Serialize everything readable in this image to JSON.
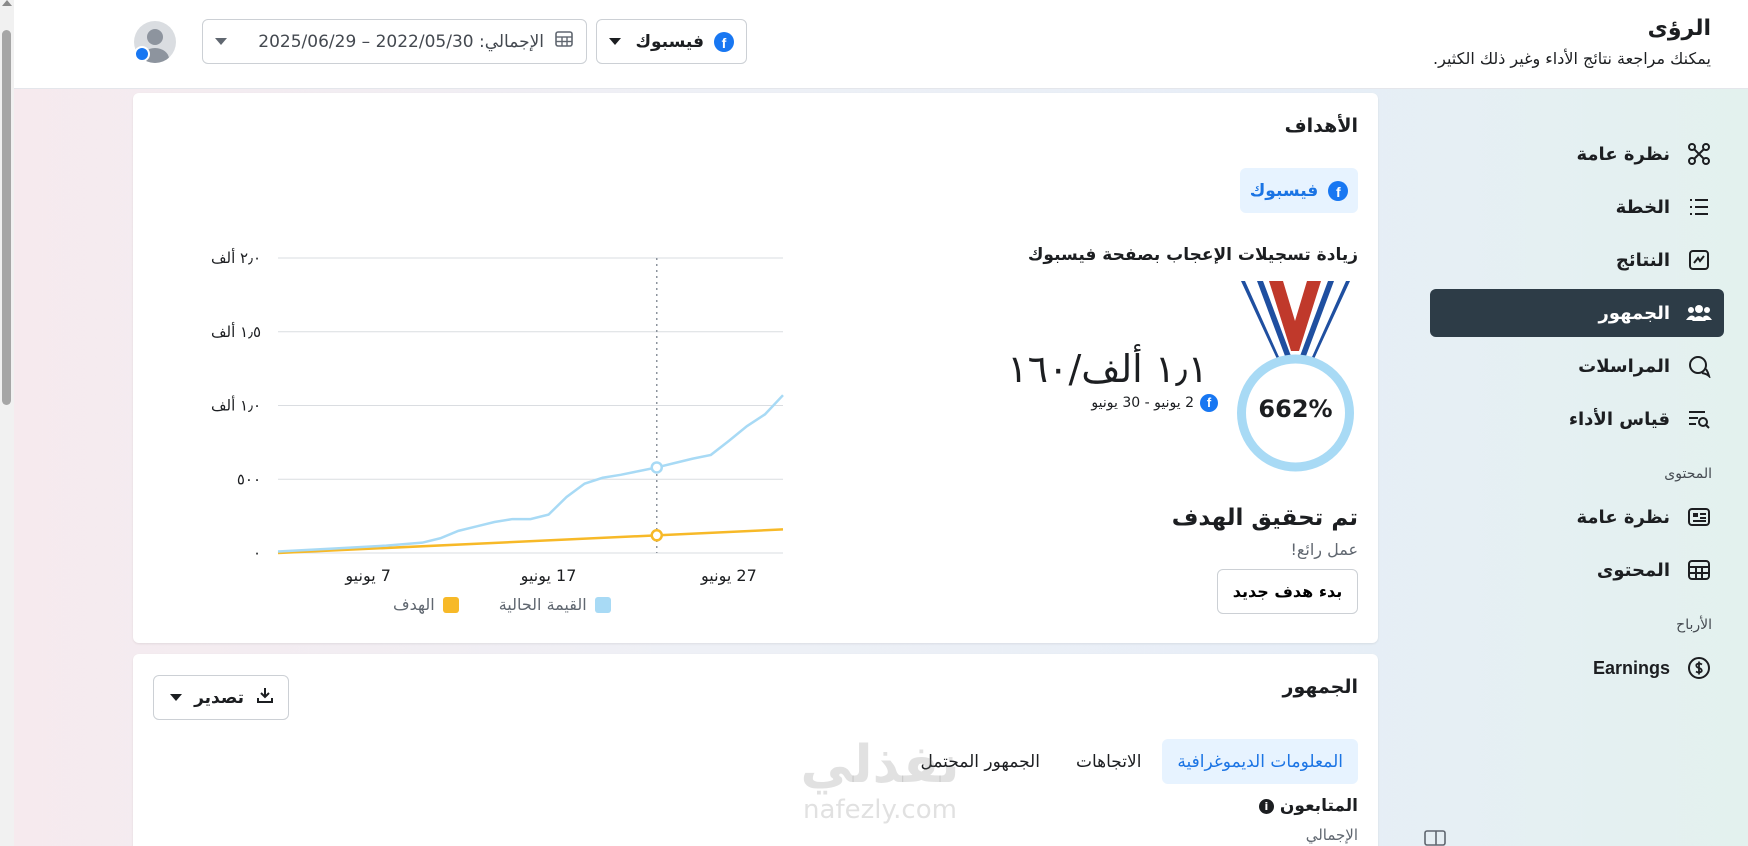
{
  "header": {
    "title": "الرؤى",
    "subtitle": "يمكنك مراجعة نتائج الأداء وغير ذلك الكثير.",
    "platform_label": "فيسبوك",
    "date_range_label": "الإجمالي: 2022/05/30 – 2025/06/29"
  },
  "sidebar": {
    "items": [
      {
        "label": "نظرة عامة",
        "icon": "overview-icon",
        "active": false
      },
      {
        "label": "الخطة",
        "icon": "plan-list-icon",
        "active": false
      },
      {
        "label": "النتائج",
        "icon": "results-chart-icon",
        "active": false
      },
      {
        "label": "الجمهور",
        "icon": "audience-people-icon",
        "active": true
      },
      {
        "label": "المراسلات",
        "icon": "messages-icon",
        "active": false
      },
      {
        "label": "قياس الأداء",
        "icon": "benchmark-icon",
        "active": false
      }
    ],
    "content_section": "المحتوى",
    "content_items": [
      {
        "label": "نظرة عامة",
        "icon": "content-overview-icon"
      },
      {
        "label": "المحتوى",
        "icon": "content-table-icon"
      }
    ],
    "earnings_section": "الأرباح",
    "earnings_items": [
      {
        "label": "Earnings",
        "icon": "dollar-icon"
      }
    ]
  },
  "goals": {
    "title": "الأهداف",
    "platform_chip": "فيسبوك",
    "goal_name": "زيادة تسجيلات الإعجاب بصفحة فيسبوك",
    "percent": "662%",
    "progress_text": "١٫١ ألف/١٦٠",
    "period": "2 يونيو - 30 يونيو",
    "status": "تم تحقيق الهدف",
    "note": "عمل رائع!",
    "new_goal_button": "بدء هدف جديد",
    "colors": {
      "current": "#a8daf5",
      "goal": "#f7b928",
      "medal_ring": "#a8daf5",
      "medal_red": "#c0392b",
      "medal_blue": "#1f4fa0"
    }
  },
  "chart_data": {
    "type": "line",
    "ytick_labels": [
      "٠",
      "٥٠٠",
      "١٫٠ ألف",
      "١٫٥ ألف",
      "٢٫٠ ألف"
    ],
    "yticks": [
      0,
      500,
      1000,
      1500,
      2000
    ],
    "ylim": [
      0,
      2000
    ],
    "xtick_labels": [
      "7 يونيو",
      "17 يونيو",
      "27 يونيو"
    ],
    "xticks": [
      7,
      17,
      27
    ],
    "xlim": [
      2,
      30
    ],
    "marker_x": 23,
    "series": [
      {
        "name": "القيمة الحالية",
        "color": "#a8daf5",
        "x": [
          2,
          5,
          8,
          10,
          11,
          12,
          13,
          14,
          15,
          16,
          17,
          18,
          19,
          20,
          21,
          22,
          23,
          24,
          25,
          26,
          27,
          28,
          29,
          30
        ],
        "values": [
          10,
          30,
          50,
          70,
          100,
          150,
          180,
          210,
          230,
          230,
          260,
          380,
          470,
          510,
          530,
          555,
          580,
          610,
          640,
          665,
          760,
          860,
          940,
          1070
        ]
      },
      {
        "name": "الهدف",
        "color": "#f7b928",
        "x": [
          2,
          30
        ],
        "values": [
          0,
          160
        ]
      }
    ]
  },
  "audience": {
    "title": "الجمهور",
    "export_label": "تصدير",
    "tabs": [
      "المعلومات الديموغرافية",
      "الاتجاهات",
      "الجمهور المحتمل"
    ],
    "followers_title": "المتابعون",
    "total_label": "الإجمالي"
  },
  "watermark": {
    "main": "نفذلي",
    "sub": "nafezly.com"
  }
}
